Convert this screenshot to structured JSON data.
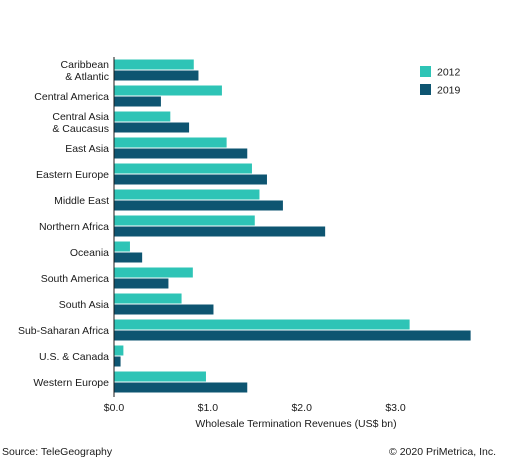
{
  "chart_data": {
    "type": "bar",
    "orientation": "horizontal",
    "categories": [
      [
        "Caribbean",
        "& Atlantic"
      ],
      [
        "Central America"
      ],
      [
        "Central Asia",
        "& Caucasus"
      ],
      [
        "East Asia"
      ],
      [
        "Eastern Europe"
      ],
      [
        "Middle East"
      ],
      [
        "Northern Africa"
      ],
      [
        "Oceania"
      ],
      [
        "South America"
      ],
      [
        "South Asia"
      ],
      [
        "Sub-Saharan Africa"
      ],
      [
        "U.S. & Canada"
      ],
      [
        "Western Europe"
      ]
    ],
    "series": [
      {
        "name": "2012",
        "color": "#2ec4b6",
        "values": [
          0.85,
          1.15,
          0.6,
          1.2,
          1.47,
          1.55,
          1.5,
          0.17,
          0.84,
          0.72,
          3.15,
          0.1,
          0.98
        ]
      },
      {
        "name": "2019",
        "color": "#0e5571",
        "values": [
          0.9,
          0.5,
          0.8,
          1.42,
          1.63,
          1.8,
          2.25,
          0.3,
          0.58,
          1.06,
          3.8,
          0.07,
          1.42
        ]
      }
    ],
    "xlabel": "Wholesale Termination Revenues (US$ bn)",
    "ylabel": "",
    "xlim": [
      0,
      3.9
    ],
    "xticks": [
      {
        "value": 0,
        "label": "$0.0"
      },
      {
        "value": 1,
        "label": "$1.0"
      },
      {
        "value": 2,
        "label": "$2.0"
      },
      {
        "value": 3,
        "label": "$3.0"
      }
    ],
    "grid": false,
    "legend_position": "top-right"
  },
  "footer": {
    "source": "Source: TeleGeography",
    "copyright": "© 2020 PriMetrica, Inc."
  }
}
